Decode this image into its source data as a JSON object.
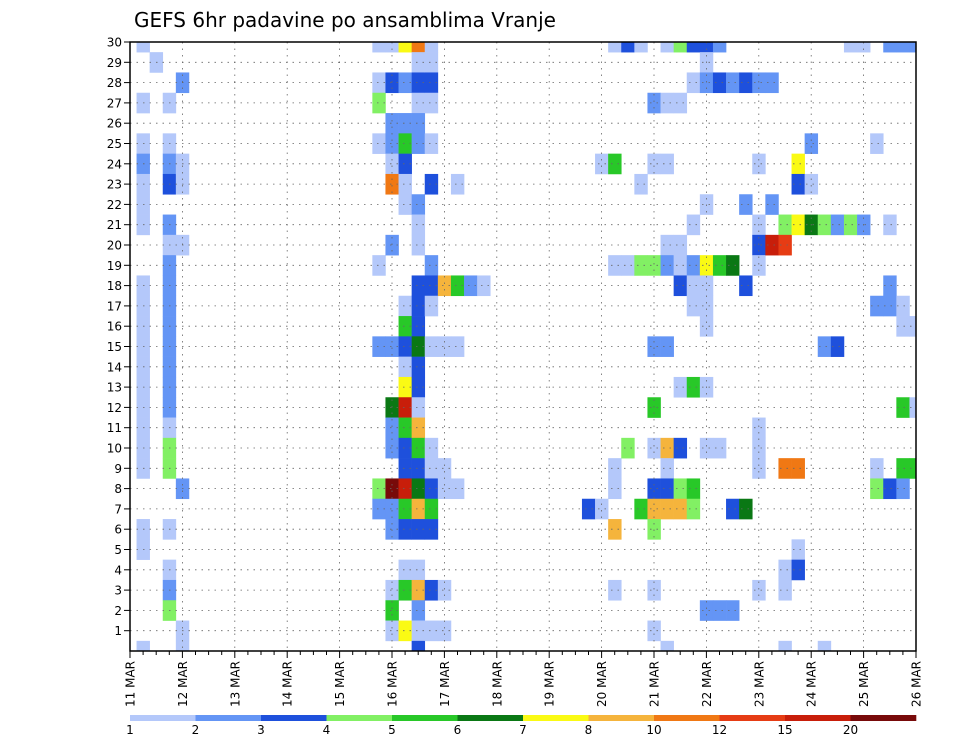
{
  "chart_data": {
    "type": "heatmap",
    "title": "GEFS 6hr padavine po ansamblima Vranje",
    "xlabel": "",
    "ylabel": "",
    "x_tick_labels": [
      "11 MAR",
      "12 MAR",
      "13 MAR",
      "14 MAR",
      "15 MAR",
      "16 MAR",
      "17 MAR",
      "18 MAR",
      "19 MAR",
      "20 MAR",
      "21 MAR",
      "22 MAR",
      "23 MAR",
      "24 MAR",
      "25 MAR",
      "26 MAR"
    ],
    "y_tick_labels": [
      "1",
      "2",
      "3",
      "4",
      "5",
      "6",
      "7",
      "8",
      "9",
      "10",
      "11",
      "12",
      "13",
      "14",
      "15",
      "16",
      "17",
      "18",
      "19",
      "20",
      "21",
      "22",
      "23",
      "24",
      "25",
      "26",
      "27",
      "28",
      "29",
      "30"
    ],
    "y_range": [
      0,
      30
    ],
    "time_steps_per_day": 4,
    "grid": true,
    "colorbar": {
      "placement": "bottom",
      "tick_labels": [
        "1",
        "2",
        "3",
        "4",
        "5",
        "6",
        "7",
        "8",
        "10",
        "12",
        "15",
        "20"
      ],
      "levels": [
        1,
        2,
        3,
        4,
        5,
        6,
        7,
        8,
        10,
        12,
        15,
        20
      ],
      "colors": [
        "#b4c8fa",
        "#6495f5",
        "#1e50dc",
        "#82f064",
        "#28c828",
        "#0a7814",
        "#fafa14",
        "#f5b43c",
        "#f07814",
        "#e63c14",
        "#c81e0a",
        "#780a0a"
      ]
    },
    "cells": [
      [
        1,
        30,
        1
      ],
      [
        1,
        27,
        1
      ],
      [
        1,
        25,
        1
      ],
      [
        1,
        24,
        2
      ],
      [
        1,
        23,
        1
      ],
      [
        1,
        22,
        1
      ],
      [
        1,
        21,
        1
      ],
      [
        1,
        18,
        1
      ],
      [
        1,
        17,
        1
      ],
      [
        1,
        16,
        1
      ],
      [
        1,
        15,
        1
      ],
      [
        1,
        14,
        1
      ],
      [
        1,
        13,
        1
      ],
      [
        1,
        12,
        1
      ],
      [
        1,
        11,
        1
      ],
      [
        1,
        10,
        1
      ],
      [
        1,
        9,
        1
      ],
      [
        1,
        6,
        1
      ],
      [
        1,
        5,
        1
      ],
      [
        1,
        0,
        1
      ],
      [
        2,
        29,
        1
      ],
      [
        3,
        27,
        1
      ],
      [
        3,
        25,
        1
      ],
      [
        3,
        24,
        2
      ],
      [
        3,
        23,
        3
      ],
      [
        3,
        21,
        2
      ],
      [
        3,
        20,
        1
      ],
      [
        3,
        19,
        2
      ],
      [
        3,
        18,
        2
      ],
      [
        3,
        17,
        2
      ],
      [
        3,
        16,
        2
      ],
      [
        3,
        15,
        2
      ],
      [
        3,
        14,
        2
      ],
      [
        3,
        13,
        2
      ],
      [
        3,
        12,
        2
      ],
      [
        3,
        11,
        1
      ],
      [
        3,
        10,
        4
      ],
      [
        3,
        9,
        4
      ],
      [
        3,
        6,
        1
      ],
      [
        3,
        4,
        1
      ],
      [
        3,
        3,
        2
      ],
      [
        3,
        2,
        4
      ],
      [
        4,
        28,
        2
      ],
      [
        4,
        24,
        1
      ],
      [
        4,
        23,
        1
      ],
      [
        4,
        20,
        1
      ],
      [
        4,
        8,
        2
      ],
      [
        4,
        1,
        1
      ],
      [
        4,
        0,
        1
      ],
      [
        19,
        30,
        1
      ],
      [
        19,
        28,
        1
      ],
      [
        19,
        27,
        4
      ],
      [
        19,
        25,
        1
      ],
      [
        19,
        19,
        1
      ],
      [
        19,
        15,
        2
      ],
      [
        19,
        8,
        4
      ],
      [
        19,
        7,
        2
      ],
      [
        20,
        30,
        1
      ],
      [
        20,
        28,
        3
      ],
      [
        20,
        26,
        2
      ],
      [
        20,
        25,
        2
      ],
      [
        20,
        24,
        1
      ],
      [
        20,
        23,
        9
      ],
      [
        20,
        20,
        2
      ],
      [
        20,
        15,
        2
      ],
      [
        20,
        12,
        6
      ],
      [
        20,
        11,
        2
      ],
      [
        20,
        10,
        2
      ],
      [
        20,
        8,
        12
      ],
      [
        20,
        7,
        2
      ],
      [
        20,
        6,
        2
      ],
      [
        20,
        3,
        1
      ],
      [
        20,
        2,
        5
      ],
      [
        20,
        1,
        1
      ],
      [
        21,
        30,
        7
      ],
      [
        21,
        28,
        2
      ],
      [
        21,
        26,
        2
      ],
      [
        21,
        25,
        5
      ],
      [
        21,
        24,
        3
      ],
      [
        21,
        23,
        1
      ],
      [
        21,
        22,
        1
      ],
      [
        21,
        17,
        1
      ],
      [
        21,
        16,
        5
      ],
      [
        21,
        15,
        3
      ],
      [
        21,
        14,
        1
      ],
      [
        21,
        13,
        7
      ],
      [
        21,
        12,
        11
      ],
      [
        21,
        11,
        5
      ],
      [
        21,
        10,
        3
      ],
      [
        21,
        9,
        3
      ],
      [
        21,
        8,
        11
      ],
      [
        21,
        7,
        5
      ],
      [
        21,
        6,
        3
      ],
      [
        21,
        4,
        1
      ],
      [
        21,
        3,
        5
      ],
      [
        21,
        1,
        7
      ],
      [
        22,
        30,
        9
      ],
      [
        22,
        29,
        1
      ],
      [
        22,
        28,
        3
      ],
      [
        22,
        27,
        1
      ],
      [
        22,
        26,
        2
      ],
      [
        22,
        25,
        2
      ],
      [
        22,
        22,
        2
      ],
      [
        22,
        21,
        1
      ],
      [
        22,
        20,
        1
      ],
      [
        22,
        18,
        3
      ],
      [
        22,
        17,
        3
      ],
      [
        22,
        16,
        3
      ],
      [
        22,
        15,
        6
      ],
      [
        22,
        14,
        3
      ],
      [
        22,
        13,
        3
      ],
      [
        22,
        12,
        1
      ],
      [
        22,
        11,
        8
      ],
      [
        22,
        10,
        5
      ],
      [
        22,
        9,
        3
      ],
      [
        22,
        8,
        6
      ],
      [
        22,
        7,
        8
      ],
      [
        22,
        6,
        3
      ],
      [
        22,
        4,
        1
      ],
      [
        22,
        3,
        8
      ],
      [
        22,
        2,
        2
      ],
      [
        22,
        1,
        1
      ],
      [
        22,
        0,
        3
      ],
      [
        23,
        30,
        1
      ],
      [
        23,
        29,
        1
      ],
      [
        23,
        28,
        3
      ],
      [
        23,
        27,
        1
      ],
      [
        23,
        25,
        1
      ],
      [
        23,
        23,
        3
      ],
      [
        23,
        19,
        2
      ],
      [
        23,
        18,
        3
      ],
      [
        23,
        17,
        1
      ],
      [
        23,
        15,
        1
      ],
      [
        23,
        10,
        1
      ],
      [
        23,
        9,
        1
      ],
      [
        23,
        8,
        3
      ],
      [
        23,
        7,
        5
      ],
      [
        23,
        6,
        3
      ],
      [
        23,
        3,
        3
      ],
      [
        23,
        1,
        1
      ],
      [
        24,
        18,
        8
      ],
      [
        24,
        15,
        1
      ],
      [
        24,
        9,
        1
      ],
      [
        24,
        8,
        1
      ],
      [
        24,
        3,
        1
      ],
      [
        24,
        1,
        1
      ],
      [
        25,
        23,
        1
      ],
      [
        25,
        18,
        5
      ],
      [
        25,
        15,
        1
      ],
      [
        25,
        8,
        1
      ],
      [
        26,
        18,
        2
      ],
      [
        27,
        18,
        1
      ],
      [
        35,
        7,
        3
      ],
      [
        36,
        24,
        1
      ],
      [
        36,
        7,
        1
      ],
      [
        37,
        30,
        1
      ],
      [
        37,
        24,
        5
      ],
      [
        37,
        19,
        1
      ],
      [
        37,
        9,
        1
      ],
      [
        37,
        8,
        1
      ],
      [
        37,
        6,
        8
      ],
      [
        37,
        3,
        1
      ],
      [
        38,
        30,
        3
      ],
      [
        38,
        19,
        1
      ],
      [
        38,
        10,
        4
      ],
      [
        39,
        30,
        1
      ],
      [
        39,
        23,
        1
      ],
      [
        39,
        19,
        4
      ],
      [
        39,
        7,
        5
      ],
      [
        40,
        27,
        2
      ],
      [
        40,
        24,
        1
      ],
      [
        40,
        19,
        4
      ],
      [
        40,
        15,
        2
      ],
      [
        40,
        12,
        5
      ],
      [
        40,
        10,
        1
      ],
      [
        40,
        8,
        3
      ],
      [
        40,
        7,
        8
      ],
      [
        40,
        6,
        4
      ],
      [
        40,
        3,
        1
      ],
      [
        40,
        1,
        1
      ],
      [
        41,
        30,
        1
      ],
      [
        41,
        27,
        1
      ],
      [
        41,
        24,
        1
      ],
      [
        41,
        20,
        1
      ],
      [
        41,
        19,
        2
      ],
      [
        41,
        15,
        2
      ],
      [
        41,
        10,
        8
      ],
      [
        41,
        9,
        1
      ],
      [
        41,
        8,
        3
      ],
      [
        41,
        7,
        8
      ],
      [
        41,
        0,
        1
      ],
      [
        42,
        30,
        4
      ],
      [
        42,
        27,
        1
      ],
      [
        42,
        20,
        1
      ],
      [
        42,
        19,
        1
      ],
      [
        42,
        18,
        3
      ],
      [
        42,
        13,
        1
      ],
      [
        42,
        10,
        3
      ],
      [
        42,
        8,
        4
      ],
      [
        42,
        7,
        8
      ],
      [
        43,
        30,
        3
      ],
      [
        43,
        28,
        1
      ],
      [
        43,
        21,
        1
      ],
      [
        43,
        19,
        2
      ],
      [
        43,
        18,
        1
      ],
      [
        43,
        17,
        1
      ],
      [
        43,
        13,
        5
      ],
      [
        43,
        8,
        5
      ],
      [
        43,
        7,
        4
      ],
      [
        44,
        30,
        3
      ],
      [
        44,
        29,
        1
      ],
      [
        44,
        28,
        2
      ],
      [
        44,
        22,
        1
      ],
      [
        44,
        19,
        7
      ],
      [
        44,
        18,
        1
      ],
      [
        44,
        17,
        1
      ],
      [
        44,
        16,
        1
      ],
      [
        44,
        13,
        1
      ],
      [
        44,
        10,
        1
      ],
      [
        44,
        2,
        2
      ],
      [
        45,
        30,
        2
      ],
      [
        45,
        28,
        3
      ],
      [
        45,
        19,
        5
      ],
      [
        45,
        10,
        1
      ],
      [
        45,
        2,
        2
      ],
      [
        46,
        28,
        2
      ],
      [
        46,
        19,
        6
      ],
      [
        46,
        7,
        3
      ],
      [
        46,
        2,
        2
      ],
      [
        47,
        28,
        3
      ],
      [
        47,
        22,
        2
      ],
      [
        47,
        18,
        3
      ],
      [
        47,
        7,
        6
      ],
      [
        48,
        28,
        2
      ],
      [
        48,
        24,
        1
      ],
      [
        48,
        21,
        1
      ],
      [
        48,
        20,
        3
      ],
      [
        48,
        19,
        1
      ],
      [
        48,
        11,
        1
      ],
      [
        48,
        10,
        1
      ],
      [
        48,
        9,
        1
      ],
      [
        48,
        3,
        1
      ],
      [
        49,
        28,
        2
      ],
      [
        49,
        22,
        2
      ],
      [
        49,
        20,
        11
      ],
      [
        50,
        21,
        4
      ],
      [
        50,
        20,
        10
      ],
      [
        50,
        9,
        9
      ],
      [
        50,
        4,
        1
      ],
      [
        50,
        3,
        1
      ],
      [
        50,
        0,
        1
      ],
      [
        51,
        24,
        7
      ],
      [
        51,
        23,
        3
      ],
      [
        51,
        21,
        7
      ],
      [
        51,
        9,
        9
      ],
      [
        51,
        5,
        1
      ],
      [
        51,
        4,
        3
      ],
      [
        52,
        25,
        2
      ],
      [
        52,
        23,
        1
      ],
      [
        52,
        21,
        6
      ],
      [
        53,
        15,
        2
      ],
      [
        53,
        21,
        4
      ],
      [
        53,
        0,
        1
      ],
      [
        54,
        15,
        3
      ],
      [
        54,
        21,
        2
      ],
      [
        55,
        30,
        1
      ],
      [
        55,
        21,
        4
      ],
      [
        56,
        30,
        1
      ],
      [
        56,
        21,
        2
      ],
      [
        57,
        25,
        1
      ],
      [
        57,
        17,
        2
      ],
      [
        57,
        9,
        1
      ],
      [
        57,
        8,
        4
      ],
      [
        58,
        30,
        2
      ],
      [
        58,
        21,
        1
      ],
      [
        58,
        18,
        2
      ],
      [
        58,
        17,
        2
      ],
      [
        58,
        8,
        3
      ],
      [
        59,
        30,
        2
      ],
      [
        59,
        17,
        1
      ],
      [
        59,
        16,
        1
      ],
      [
        59,
        12,
        5
      ],
      [
        59,
        9,
        5
      ],
      [
        59,
        8,
        2
      ],
      [
        60,
        30,
        2
      ],
      [
        60,
        16,
        1
      ],
      [
        60,
        12,
        1
      ],
      [
        60,
        9,
        5
      ],
      [
        61,
        30,
        2
      ],
      [
        61,
        20,
        2
      ],
      [
        61,
        19,
        5
      ],
      [
        61,
        15,
        2
      ],
      [
        62,
        27,
        1
      ],
      [
        62,
        25,
        1
      ],
      [
        62,
        24,
        1
      ],
      [
        62,
        23,
        8
      ],
      [
        62,
        19,
        9
      ],
      [
        62,
        9,
        9
      ],
      [
        62,
        6,
        2
      ],
      [
        62,
        4,
        1
      ],
      [
        63,
        27,
        1
      ],
      [
        63,
        25,
        3
      ],
      [
        63,
        24,
        7
      ],
      [
        63,
        23,
        2
      ],
      [
        63,
        22,
        1
      ],
      [
        63,
        19,
        1
      ],
      [
        63,
        16,
        4
      ],
      [
        63,
        14,
        3
      ],
      [
        63,
        9,
        1
      ],
      [
        63,
        6,
        2
      ],
      [
        63,
        4,
        1
      ],
      [
        64,
        27,
        4
      ],
      [
        64,
        25,
        2
      ],
      [
        64,
        24,
        5
      ],
      [
        64,
        23,
        5
      ],
      [
        64,
        22,
        4
      ],
      [
        64,
        16,
        4
      ],
      [
        64,
        15,
        5
      ],
      [
        64,
        9,
        4
      ],
      [
        64,
        6,
        2
      ],
      [
        64,
        3,
        2
      ],
      [
        65,
        27,
        3
      ],
      [
        65,
        24,
        5
      ],
      [
        65,
        23,
        5
      ],
      [
        65,
        16,
        1
      ],
      [
        65,
        6,
        2
      ],
      [
        65,
        3,
        9
      ],
      [
        65,
        1,
        4
      ]
    ]
  }
}
